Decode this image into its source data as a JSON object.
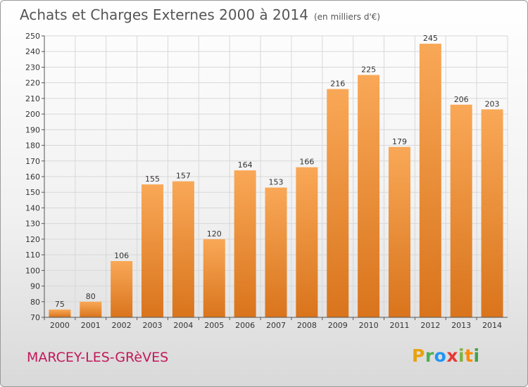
{
  "header": {
    "title": "Achats et Charges Externes 2000 à 2014",
    "unit": "(en milliers d'€)"
  },
  "footer": {
    "commune": "MARCEY-LES-GRèVES",
    "logo_letters": [
      "P",
      "r",
      "o",
      "x",
      "i",
      "t",
      "i"
    ],
    "logo_colors": [
      "#e8a20c",
      "#4caf50",
      "#2196f3",
      "#e53935",
      "#7cb342",
      "#fb8c00",
      "#43a047"
    ]
  },
  "colors": {
    "bar_top": "#f9a857",
    "bar_bottom": "#d9741c",
    "grid": "#d8d8d8",
    "axis": "#555555"
  },
  "chart_data": {
    "type": "bar",
    "categories": [
      "2000",
      "2001",
      "2002",
      "2003",
      "2004",
      "2005",
      "2006",
      "2007",
      "2008",
      "2009",
      "2010",
      "2011",
      "2012",
      "2013",
      "2014"
    ],
    "values": [
      75,
      80,
      106,
      155,
      157,
      120,
      164,
      153,
      166,
      216,
      225,
      179,
      245,
      206,
      203
    ],
    "title": "Achats et Charges Externes 2000 à 2014",
    "ylim": [
      70,
      250
    ],
    "yticks": [
      70,
      80,
      90,
      100,
      110,
      120,
      130,
      140,
      150,
      160,
      170,
      180,
      190,
      200,
      210,
      220,
      230,
      240,
      250
    ],
    "grid": true,
    "data_labels": true
  }
}
